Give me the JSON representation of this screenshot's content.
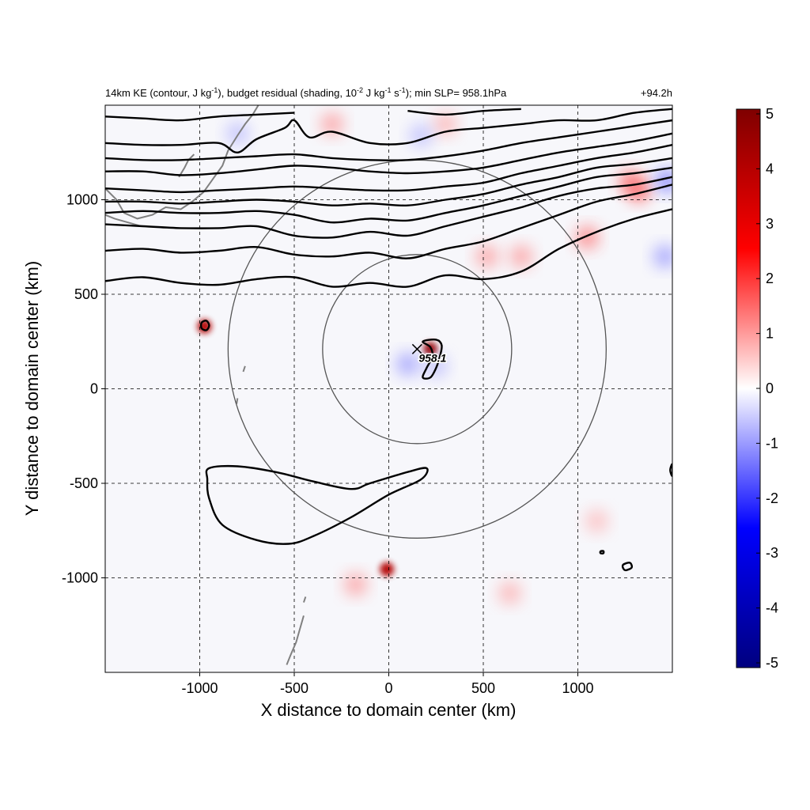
{
  "chart_data": {
    "type": "heatmap",
    "title": {
      "left_main": "14km KE (contour, J kg",
      "left_sup1": "-1",
      "left_mid": "), budget residual (shading, 10",
      "left_sup2": "-2",
      "left_mid2": " J kg",
      "left_sup3": "-1",
      "left_mid3": " s",
      "left_sup4": "-1",
      "left_end": "); min SLP= 958.1hPa",
      "right": "+94.2h"
    },
    "xlabel": "X distance to domain center (km)",
    "ylabel": "Y distance to domain center (km)",
    "xlim": [
      -1500,
      1500
    ],
    "ylim": [
      -1500,
      1500
    ],
    "xticks": [
      -1000,
      -500,
      0,
      500,
      1000
    ],
    "yticks": [
      -1000,
      -500,
      0,
      500,
      1000
    ],
    "xtick_labels": [
      "-1000",
      "-500",
      "0",
      "500",
      "1000"
    ],
    "ytick_labels": [
      "-1000",
      "-500",
      "0",
      "500",
      "1000"
    ],
    "grid": true,
    "colorbar": {
      "min": -5,
      "max": 5,
      "ticks": [
        5,
        4,
        3,
        2,
        1,
        0,
        -1,
        -2,
        -3,
        -4,
        -5
      ],
      "tick_labels": [
        "5",
        "4",
        "3",
        "2",
        "1",
        "0",
        "-1",
        "-2",
        "-3",
        "-4",
        "-5"
      ],
      "colormap": [
        "#00007f",
        "#0000ff",
        "#ffffff",
        "#ff0000",
        "#7f0000"
      ]
    },
    "storm_center": {
      "x": 150,
      "y": 210,
      "label": "958.1"
    },
    "radius_circles_km": [
      500,
      1000
    ],
    "blobs": [
      {
        "x": 220,
        "y": 210,
        "value": 4.5
      },
      {
        "x": -975,
        "y": 330,
        "value": 4.0
      },
      {
        "x": -10,
        "y": -955,
        "value": 4.0
      },
      {
        "x": -175,
        "y": -1035,
        "value": 1.5
      },
      {
        "x": 1320,
        "y": 1050,
        "value": 2.5
      },
      {
        "x": 1275,
        "y": 1100,
        "value": 2.0
      },
      {
        "x": 700,
        "y": 700,
        "value": 1.5
      },
      {
        "x": 1050,
        "y": 800,
        "value": 2.0
      },
      {
        "x": -300,
        "y": 1400,
        "value": 1.5
      },
      {
        "x": 300,
        "y": 1400,
        "value": 1.2
      },
      {
        "x": 520,
        "y": 700,
        "value": 1.5
      },
      {
        "x": 1100,
        "y": -700,
        "value": 1.0
      },
      {
        "x": 640,
        "y": -1080,
        "value": 1.2
      }
    ],
    "negative_blobs": [
      {
        "x": 100,
        "y": 130,
        "value": -1.5
      },
      {
        "x": 170,
        "y": 1340,
        "value": -1.0
      },
      {
        "x": -800,
        "y": 1350,
        "value": -1.0
      },
      {
        "x": 1470,
        "y": 1100,
        "value": -2.0
      },
      {
        "x": 1460,
        "y": 700,
        "value": -1.5
      },
      {
        "x": 250,
        "y": 120,
        "value": -1.0
      }
    ],
    "ke_contours": [
      [
        [
          -1500,
          570
        ],
        [
          -1300,
          590
        ],
        [
          -1100,
          560
        ],
        [
          -900,
          550
        ],
        [
          -700,
          580
        ],
        [
          -500,
          590
        ],
        [
          -300,
          540
        ],
        [
          -100,
          560
        ],
        [
          100,
          540
        ],
        [
          300,
          600
        ],
        [
          500,
          580
        ],
        [
          700,
          620
        ],
        [
          900,
          740
        ],
        [
          1100,
          830
        ],
        [
          1300,
          900
        ],
        [
          1500,
          950
        ]
      ],
      [
        [
          -1500,
          730
        ],
        [
          -1300,
          740
        ],
        [
          -1100,
          720
        ],
        [
          -900,
          730
        ],
        [
          -700,
          750
        ],
        [
          -500,
          710
        ],
        [
          -300,
          700
        ],
        [
          -100,
          720
        ],
        [
          100,
          690
        ],
        [
          300,
          740
        ],
        [
          500,
          780
        ],
        [
          700,
          850
        ],
        [
          900,
          920
        ],
        [
          1100,
          990
        ],
        [
          1300,
          1030
        ],
        [
          1500,
          1080
        ]
      ],
      [
        [
          -1500,
          870
        ],
        [
          -1300,
          860
        ],
        [
          -1100,
          850
        ],
        [
          -900,
          850
        ],
        [
          -700,
          860
        ],
        [
          -500,
          810
        ],
        [
          -300,
          800
        ],
        [
          -100,
          830
        ],
        [
          100,
          810
        ],
        [
          300,
          860
        ],
        [
          500,
          910
        ],
        [
          700,
          960
        ],
        [
          900,
          1020
        ],
        [
          1100,
          1060
        ],
        [
          1300,
          1080
        ],
        [
          1500,
          1120
        ]
      ],
      [
        [
          -1500,
          930
        ],
        [
          -1300,
          940
        ],
        [
          -1100,
          930
        ],
        [
          -900,
          930
        ],
        [
          -700,
          940
        ],
        [
          -500,
          920
        ],
        [
          -300,
          880
        ],
        [
          -100,
          900
        ],
        [
          100,
          890
        ],
        [
          300,
          930
        ],
        [
          500,
          970
        ],
        [
          700,
          1020
        ],
        [
          900,
          1070
        ],
        [
          1100,
          1120
        ],
        [
          1300,
          1140
        ],
        [
          1500,
          1170
        ]
      ],
      [
        [
          -1500,
          990
        ],
        [
          -1300,
          990
        ],
        [
          -1100,
          980
        ],
        [
          -900,
          990
        ],
        [
          -700,
          1000
        ],
        [
          -500,
          990
        ],
        [
          -300,
          970
        ],
        [
          -100,
          980
        ],
        [
          100,
          970
        ],
        [
          300,
          1000
        ],
        [
          500,
          1030
        ],
        [
          700,
          1080
        ],
        [
          900,
          1120
        ],
        [
          1100,
          1170
        ],
        [
          1300,
          1190
        ],
        [
          1500,
          1220
        ]
      ],
      [
        [
          -1500,
          1060
        ],
        [
          -1300,
          1050
        ],
        [
          -1100,
          1040
        ],
        [
          -900,
          1050
        ],
        [
          -700,
          1060
        ],
        [
          -500,
          1070
        ],
        [
          -300,
          1060
        ],
        [
          -100,
          1050
        ],
        [
          100,
          1050
        ],
        [
          300,
          1070
        ],
        [
          500,
          1090
        ],
        [
          700,
          1140
        ],
        [
          900,
          1180
        ],
        [
          1100,
          1220
        ],
        [
          1300,
          1250
        ],
        [
          1500,
          1290
        ]
      ],
      [
        [
          -1500,
          1150
        ],
        [
          -1300,
          1150
        ],
        [
          -1100,
          1130
        ],
        [
          -900,
          1140
        ],
        [
          -700,
          1160
        ],
        [
          -500,
          1180
        ],
        [
          -300,
          1170
        ],
        [
          -100,
          1150
        ],
        [
          100,
          1140
        ],
        [
          300,
          1150
        ],
        [
          500,
          1170
        ],
        [
          700,
          1210
        ],
        [
          900,
          1250
        ],
        [
          1100,
          1280
        ],
        [
          1300,
          1310
        ],
        [
          1500,
          1350
        ]
      ],
      [
        [
          -1500,
          1220
        ],
        [
          -1300,
          1210
        ],
        [
          -1100,
          1210
        ],
        [
          -900,
          1220
        ],
        [
          -700,
          1230
        ],
        [
          -500,
          1240
        ],
        [
          -300,
          1220
        ],
        [
          -100,
          1210
        ],
        [
          100,
          1210
        ],
        [
          300,
          1230
        ],
        [
          500,
          1260
        ],
        [
          700,
          1300
        ],
        [
          900,
          1330
        ],
        [
          1100,
          1360
        ],
        [
          1300,
          1390
        ],
        [
          1500,
          1420
        ]
      ],
      [
        [
          -1500,
          1300
        ],
        [
          -1300,
          1290
        ],
        [
          -1100,
          1290
        ],
        [
          -900,
          1300
        ],
        [
          -800,
          1250
        ],
        [
          -700,
          1320
        ],
        [
          -550,
          1380
        ],
        [
          -500,
          1420
        ],
        [
          -420,
          1330
        ],
        [
          -300,
          1360
        ],
        [
          -100,
          1300
        ],
        [
          100,
          1300
        ],
        [
          300,
          1360
        ],
        [
          500,
          1380
        ],
        [
          700,
          1400
        ],
        [
          900,
          1420
        ],
        [
          1100,
          1420
        ],
        [
          1300,
          1460
        ],
        [
          1500,
          1480
        ]
      ],
      [
        [
          -1500,
          1440
        ],
        [
          -1300,
          1430
        ],
        [
          -1100,
          1420
        ],
        [
          -900,
          1440
        ],
        [
          -700,
          1450
        ],
        [
          -500,
          1460
        ]
      ],
      [
        [
          100,
          1470
        ],
        [
          300,
          1450
        ],
        [
          500,
          1470
        ],
        [
          700,
          1480
        ]
      ]
    ],
    "ke_closed_contours": [
      [
        [
          -950,
          -420
        ],
        [
          -800,
          -410
        ],
        [
          -600,
          -440
        ],
        [
          -400,
          -490
        ],
        [
          -200,
          -530
        ],
        [
          -100,
          -500
        ],
        [
          100,
          -440
        ],
        [
          200,
          -420
        ],
        [
          170,
          -480
        ],
        [
          0,
          -560
        ],
        [
          -200,
          -680
        ],
        [
          -400,
          -780
        ],
        [
          -530,
          -820
        ],
        [
          -700,
          -800
        ],
        [
          -880,
          -720
        ],
        [
          -950,
          -580
        ],
        [
          -960,
          -480
        ]
      ],
      [
        [
          -990,
          350
        ],
        [
          -965,
          360
        ],
        [
          -950,
          335
        ],
        [
          -965,
          310
        ],
        [
          -990,
          320
        ]
      ],
      [
        [
          1240,
          -930
        ],
        [
          1275,
          -920
        ],
        [
          1285,
          -945
        ],
        [
          1255,
          -960
        ],
        [
          1240,
          -950
        ]
      ],
      [
        [
          1120,
          -860
        ],
        [
          1135,
          -858
        ],
        [
          1135,
          -870
        ],
        [
          1120,
          -870
        ]
      ],
      [
        [
          1490,
          -420
        ],
        [
          1500,
          -400
        ],
        [
          1500,
          -460
        ],
        [
          1490,
          -440
        ]
      ],
      [
        [
          180,
          250
        ],
        [
          250,
          260
        ],
        [
          280,
          230
        ],
        [
          270,
          170
        ],
        [
          250,
          110
        ],
        [
          220,
          60
        ],
        [
          180,
          60
        ],
        [
          200,
          110
        ],
        [
          230,
          170
        ],
        [
          220,
          220
        ]
      ]
    ],
    "coast_segments": [
      [
        [
          -1500,
          1060
        ],
        [
          -1440,
          1000
        ],
        [
          -1400,
          930
        ],
        [
          -1330,
          900
        ],
        [
          -1250,
          920
        ],
        [
          -1180,
          960
        ],
        [
          -1100,
          950
        ],
        [
          -1040,
          990
        ],
        [
          -980,
          1040
        ],
        [
          -930,
          1110
        ],
        [
          -880,
          1180
        ],
        [
          -850,
          1260
        ],
        [
          -800,
          1340
        ],
        [
          -760,
          1400
        ],
        [
          -720,
          1450
        ],
        [
          -690,
          1500
        ]
      ],
      [
        [
          -1500,
          920
        ],
        [
          -1450,
          900
        ],
        [
          -1380,
          880
        ],
        [
          -1310,
          860
        ]
      ],
      [
        [
          -1110,
          1120
        ],
        [
          -1080,
          1170
        ],
        [
          -1060,
          1210
        ],
        [
          -1030,
          1240
        ]
      ],
      [
        [
          -760,
          120
        ],
        [
          -770,
          90
        ]
      ],
      [
        [
          -800,
          -50
        ],
        [
          -805,
          -80
        ]
      ],
      [
        [
          -450,
          -1200
        ],
        [
          -470,
          -1270
        ],
        [
          -490,
          -1340
        ],
        [
          -520,
          -1410
        ],
        [
          -540,
          -1460
        ]
      ],
      [
        [
          -440,
          -1100
        ],
        [
          -450,
          -1130
        ]
      ]
    ]
  }
}
